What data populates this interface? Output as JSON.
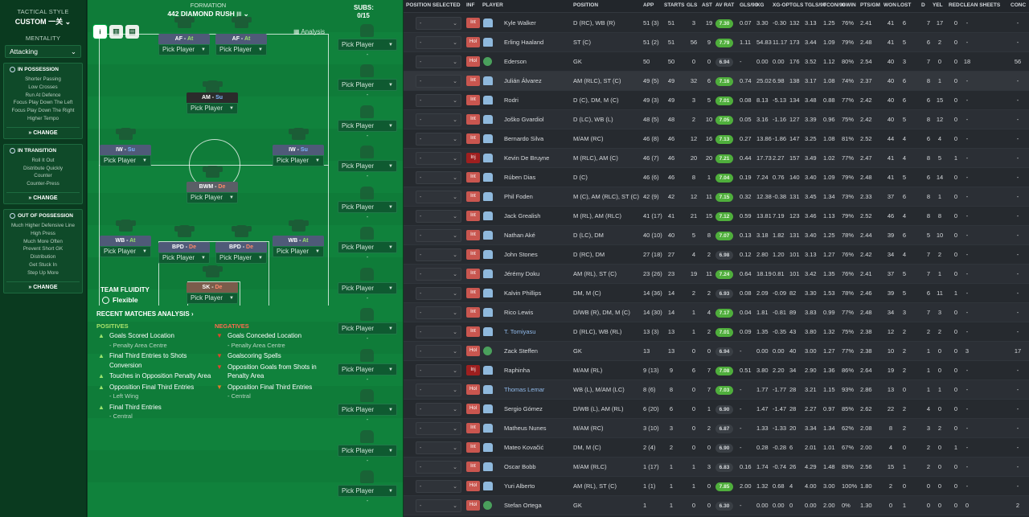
{
  "left_panel": {
    "tactical_style_label": "TACTICAL STYLE",
    "tactical_style_value": "CUSTOM 一关",
    "mentality_label": "MENTALITY",
    "mentality_value": "Attacking",
    "in_possession": {
      "title": "IN POSSESSION",
      "items": [
        "Shorter Passing",
        "Low Crosses",
        "Run At Defence",
        "Focus Play Down The Left",
        "Focus Play Down The Right",
        "Higher Tempo"
      ],
      "change": "CHANGE"
    },
    "in_transition": {
      "title": "IN TRANSITION",
      "items": [
        "Roll It Out",
        "Distribute Quickly",
        "Counter",
        "Counter-Press"
      ],
      "change": "CHANGE"
    },
    "out_of_possession": {
      "title": "OUT OF POSSESSION",
      "items": [
        "Much Higher Defensive Line",
        "High Press",
        "Much More Often",
        "Prevent Short GK",
        "Distribution",
        "Get Stuck In",
        "Step Up More"
      ],
      "change": "CHANGE"
    }
  },
  "pitch": {
    "formation_label": "FORMATION",
    "formation_name": "442 DIAMOND RUSH",
    "subs_label": "SUBS:",
    "subs_count": "0/15",
    "analysis_label": "Analysis",
    "pick_label": "Pick Player",
    "positions": [
      {
        "role": "AF",
        "duty": "At"
      },
      {
        "role": "AF",
        "duty": "At"
      },
      {
        "role": "AM",
        "duty": "Su"
      },
      {
        "role": "IW",
        "duty": "Su"
      },
      {
        "role": "IW",
        "duty": "Su"
      },
      {
        "role": "BWM",
        "duty": "De"
      },
      {
        "role": "WB",
        "duty": "At"
      },
      {
        "role": "BPD",
        "duty": "De"
      },
      {
        "role": "BPD",
        "duty": "De"
      },
      {
        "role": "WB",
        "duty": "At"
      },
      {
        "role": "SK",
        "duty": "De"
      }
    ],
    "sub_dash": "-",
    "team_fluidity_label": "TEAM FLUIDITY",
    "team_fluidity_value": "Flexible",
    "recent_matches_label": "RECENT MATCHES ANALYSIS",
    "positives_label": "POSITIVES",
    "negatives_label": "NEGATIVES",
    "positives": [
      {
        "text": "Goals Scored Location",
        "sub": "- Penalty Area Centre"
      },
      {
        "text": "Final Third Entries to Shots Conversion",
        "sub": ""
      },
      {
        "text": "Touches in Opposition Penalty Area",
        "sub": ""
      },
      {
        "text": "Opposition Final Third Entries",
        "sub": "- Left Wing"
      },
      {
        "text": "Final Third Entries",
        "sub": "- Central"
      }
    ],
    "negatives": [
      {
        "text": "Goals Conceded Location",
        "sub": "- Penalty Area Centre"
      },
      {
        "text": "Goalscoring Spells",
        "sub": ""
      },
      {
        "text": "Opposition Goals from Shots in Penalty Area",
        "sub": ""
      },
      {
        "text": "Opposition Final Third Entries",
        "sub": "- Central"
      }
    ]
  },
  "table": {
    "columns": [
      "POSITION SELECTED",
      "INF",
      "PLAYER",
      "POSITION",
      "APP",
      "STARTS",
      "GLS",
      "AST",
      "AV RAT",
      "GLS/90",
      "XG",
      "XG-OP",
      "TGLS",
      "TGLS/90",
      "TCON/90",
      "GWIN",
      "PTS/GM",
      "WON",
      "LOST",
      "D",
      "YEL",
      "RED",
      "CLEAN SHEETS",
      "CONC"
    ],
    "rows": [
      {
        "inf": "Int",
        "player": "Kyle Walker",
        "position": "D (RC), WB (R)",
        "app": "51 (3)",
        "starts": "51",
        "gls": "3",
        "ast": "19",
        "rat": "7.30",
        "gls90": "0.07",
        "xg": "3.30",
        "xgop": "-0.30",
        "tgls": "132",
        "tgls90": "3.13",
        "tcon90": "1.25",
        "gwin": "76%",
        "ptsgm": "2.41",
        "won": "41",
        "lost": "6",
        "d": "7",
        "yel": "17",
        "red": "0",
        "cs": "-",
        "conc": "-"
      },
      {
        "inf": "Hol",
        "player": "Erling Haaland",
        "position": "ST (C)",
        "app": "51 (2)",
        "starts": "51",
        "gls": "56",
        "ast": "9",
        "rat": "7.79",
        "gls90": "1.11",
        "xg": "54.83",
        "xgop": "11.17",
        "tgls": "173",
        "tgls90": "3.44",
        "tcon90": "1.09",
        "gwin": "79%",
        "ptsgm": "2.48",
        "won": "41",
        "lost": "5",
        "d": "6",
        "yel": "2",
        "red": "0",
        "cs": "-",
        "conc": "-"
      },
      {
        "inf": "Hol",
        "player": "Ederson",
        "position": "GK",
        "app": "50",
        "starts": "50",
        "gls": "0",
        "ast": "0",
        "rat": "6.94",
        "gls90": "-",
        "xg": "0.00",
        "xgop": "0.00",
        "tgls": "176",
        "tgls90": "3.52",
        "tcon90": "1.12",
        "gwin": "80%",
        "ptsgm": "2.54",
        "won": "40",
        "lost": "3",
        "d": "7",
        "yel": "0",
        "red": "0",
        "cs": "18",
        "conc": "56"
      },
      {
        "inf": "Int",
        "player": "Julián Álvarez",
        "position": "AM (RLC), ST (C)",
        "app": "49 (5)",
        "starts": "49",
        "gls": "32",
        "ast": "6",
        "rat": "7.16",
        "gls90": "0.74",
        "xg": "25.02",
        "xgop": "6.98",
        "tgls": "138",
        "tgls90": "3.17",
        "tcon90": "1.08",
        "gwin": "74%",
        "ptsgm": "2.37",
        "won": "40",
        "lost": "6",
        "d": "8",
        "yel": "1",
        "red": "0",
        "cs": "-",
        "conc": "-"
      },
      {
        "inf": "Int",
        "player": "Rodri",
        "position": "D (C), DM, M (C)",
        "app": "49 (3)",
        "starts": "49",
        "gls": "3",
        "ast": "5",
        "rat": "7.01",
        "gls90": "0.08",
        "xg": "8.13",
        "xgop": "-5.13",
        "tgls": "134",
        "tgls90": "3.48",
        "tcon90": "0.88",
        "gwin": "77%",
        "ptsgm": "2.42",
        "won": "40",
        "lost": "6",
        "d": "6",
        "yel": "15",
        "red": "0",
        "cs": "-",
        "conc": "-"
      },
      {
        "inf": "Int",
        "player": "Joško Gvardiol",
        "position": "D (LC), WB (L)",
        "app": "48 (5)",
        "starts": "48",
        "gls": "2",
        "ast": "10",
        "rat": "7.05",
        "gls90": "0.05",
        "xg": "3.16",
        "xgop": "-1.16",
        "tgls": "127",
        "tgls90": "3.39",
        "tcon90": "0.96",
        "gwin": "75%",
        "ptsgm": "2.42",
        "won": "40",
        "lost": "5",
        "d": "8",
        "yel": "12",
        "red": "0",
        "cs": "-",
        "conc": "-"
      },
      {
        "inf": "Int",
        "player": "Bernardo Silva",
        "position": "M/AM (RC)",
        "app": "46 (8)",
        "starts": "46",
        "gls": "12",
        "ast": "16",
        "rat": "7.13",
        "gls90": "0.27",
        "xg": "13.86",
        "xgop": "-1.86",
        "tgls": "147",
        "tgls90": "3.25",
        "tcon90": "1.08",
        "gwin": "81%",
        "ptsgm": "2.52",
        "won": "44",
        "lost": "4",
        "d": "6",
        "yel": "4",
        "red": "0",
        "cs": "-",
        "conc": "-"
      },
      {
        "inf": "Inj",
        "player": "Kevin De Bruyne",
        "position": "M (RLC), AM (C)",
        "app": "46 (7)",
        "starts": "46",
        "gls": "20",
        "ast": "20",
        "rat": "7.21",
        "gls90": "0.44",
        "xg": "17.73",
        "xgop": "2.27",
        "tgls": "157",
        "tgls90": "3.49",
        "tcon90": "1.02",
        "gwin": "77%",
        "ptsgm": "2.47",
        "won": "41",
        "lost": "4",
        "d": "8",
        "yel": "5",
        "red": "1",
        "cs": "-",
        "conc": "-"
      },
      {
        "inf": "Int",
        "player": "Rúben Dias",
        "position": "D (C)",
        "app": "46 (6)",
        "starts": "46",
        "gls": "8",
        "ast": "1",
        "rat": "7.04",
        "gls90": "0.19",
        "xg": "7.24",
        "xgop": "0.76",
        "tgls": "140",
        "tgls90": "3.40",
        "tcon90": "1.09",
        "gwin": "79%",
        "ptsgm": "2.48",
        "won": "41",
        "lost": "5",
        "d": "6",
        "yel": "14",
        "red": "0",
        "cs": "-",
        "conc": "-"
      },
      {
        "inf": "Int",
        "player": "Phil Foden",
        "position": "M (C), AM (RLC), ST (C)",
        "app": "42 (9)",
        "starts": "42",
        "gls": "12",
        "ast": "11",
        "rat": "7.15",
        "gls90": "0.32",
        "xg": "12.38",
        "xgop": "-0.38",
        "tgls": "131",
        "tgls90": "3.45",
        "tcon90": "1.34",
        "gwin": "73%",
        "ptsgm": "2.33",
        "won": "37",
        "lost": "6",
        "d": "8",
        "yel": "1",
        "red": "0",
        "cs": "-",
        "conc": "-"
      },
      {
        "inf": "Int",
        "player": "Jack Grealish",
        "position": "M (RL), AM (RLC)",
        "app": "41 (17)",
        "starts": "41",
        "gls": "21",
        "ast": "15",
        "rat": "7.12",
        "gls90": "0.59",
        "xg": "13.81",
        "xgop": "7.19",
        "tgls": "123",
        "tgls90": "3.46",
        "tcon90": "1.13",
        "gwin": "79%",
        "ptsgm": "2.52",
        "won": "46",
        "lost": "4",
        "d": "8",
        "yel": "8",
        "red": "0",
        "cs": "-",
        "conc": "-"
      },
      {
        "inf": "Int",
        "player": "Nathan Aké",
        "position": "D (LC), DM",
        "app": "40 (10)",
        "starts": "40",
        "gls": "5",
        "ast": "8",
        "rat": "7.07",
        "gls90": "0.13",
        "xg": "3.18",
        "xgop": "1.82",
        "tgls": "131",
        "tgls90": "3.40",
        "tcon90": "1.25",
        "gwin": "78%",
        "ptsgm": "2.44",
        "won": "39",
        "lost": "6",
        "d": "5",
        "yel": "10",
        "red": "0",
        "cs": "-",
        "conc": "-"
      },
      {
        "inf": "Int",
        "player": "John Stones",
        "position": "D (RC), DM",
        "app": "27 (18)",
        "starts": "27",
        "gls": "4",
        "ast": "2",
        "rat": "6.98",
        "gls90": "0.12",
        "xg": "2.80",
        "xgop": "1.20",
        "tgls": "101",
        "tgls90": "3.13",
        "tcon90": "1.27",
        "gwin": "76%",
        "ptsgm": "2.42",
        "won": "34",
        "lost": "4",
        "d": "7",
        "yel": "2",
        "red": "0",
        "cs": "-",
        "conc": "-"
      },
      {
        "inf": "Int",
        "player": "Jérémy Doku",
        "position": "AM (RL), ST (C)",
        "app": "23 (26)",
        "starts": "23",
        "gls": "19",
        "ast": "11",
        "rat": "7.24",
        "gls90": "0.64",
        "xg": "18.19",
        "xgop": "0.81",
        "tgls": "101",
        "tgls90": "3.42",
        "tcon90": "1.35",
        "gwin": "76%",
        "ptsgm": "2.41",
        "won": "37",
        "lost": "5",
        "d": "7",
        "yel": "1",
        "red": "0",
        "cs": "-",
        "conc": "-"
      },
      {
        "inf": "Int",
        "player": "Kalvin Phillips",
        "position": "DM, M (C)",
        "app": "14 (36)",
        "starts": "14",
        "gls": "2",
        "ast": "2",
        "rat": "6.93",
        "gls90": "0.08",
        "xg": "2.09",
        "xgop": "-0.09",
        "tgls": "82",
        "tgls90": "3.30",
        "tcon90": "1.53",
        "gwin": "78%",
        "ptsgm": "2.46",
        "won": "39",
        "lost": "5",
        "d": "6",
        "yel": "11",
        "red": "1",
        "cs": "-",
        "conc": "-"
      },
      {
        "inf": "Int",
        "player": "Rico Lewis",
        "position": "D/WB (R), DM, M (C)",
        "app": "14 (30)",
        "starts": "14",
        "gls": "1",
        "ast": "4",
        "rat": "7.17",
        "gls90": "0.04",
        "xg": "1.81",
        "xgop": "-0.81",
        "tgls": "89",
        "tgls90": "3.83",
        "tcon90": "0.99",
        "gwin": "77%",
        "ptsgm": "2.48",
        "won": "34",
        "lost": "3",
        "d": "7",
        "yel": "3",
        "red": "0",
        "cs": "-",
        "conc": "-"
      },
      {
        "inf": "Int",
        "player": "T. Tomiyasu",
        "position": "D (RLC), WB (RL)",
        "app": "13 (3)",
        "starts": "13",
        "gls": "1",
        "ast": "2",
        "rat": "7.01",
        "gls90": "0.09",
        "xg": "1.35",
        "xgop": "-0.35",
        "tgls": "43",
        "tgls90": "3.80",
        "tcon90": "1.32",
        "gwin": "75%",
        "ptsgm": "2.38",
        "won": "12",
        "lost": "2",
        "d": "2",
        "yel": "2",
        "red": "0",
        "cs": "-",
        "conc": "-"
      },
      {
        "inf": "Hol",
        "player": "Zack Steffen",
        "position": "GK",
        "app": "13",
        "starts": "13",
        "gls": "0",
        "ast": "0",
        "rat": "6.94",
        "gls90": "-",
        "xg": "0.00",
        "xgop": "0.00",
        "tgls": "40",
        "tgls90": "3.00",
        "tcon90": "1.27",
        "gwin": "77%",
        "ptsgm": "2.38",
        "won": "10",
        "lost": "2",
        "d": "1",
        "yel": "0",
        "red": "0",
        "cs": "3",
        "conc": "17"
      },
      {
        "inf": "Inj",
        "player": "Raphinha",
        "position": "M/AM (RL)",
        "app": "9 (13)",
        "starts": "9",
        "gls": "6",
        "ast": "7",
        "rat": "7.08",
        "gls90": "0.51",
        "xg": "3.80",
        "xgop": "2.20",
        "tgls": "34",
        "tgls90": "2.90",
        "tcon90": "1.36",
        "gwin": "86%",
        "ptsgm": "2.64",
        "won": "19",
        "lost": "2",
        "d": "1",
        "yel": "0",
        "red": "0",
        "cs": "-",
        "conc": "-"
      },
      {
        "inf": "Hol",
        "player": "Thomas Lemar",
        "position": "WB (L), M/AM (LC)",
        "app": "8 (6)",
        "starts": "8",
        "gls": "0",
        "ast": "7",
        "rat": "7.03",
        "gls90": "-",
        "xg": "1.77",
        "xgop": "-1.77",
        "tgls": "28",
        "tgls90": "3.21",
        "tcon90": "1.15",
        "gwin": "93%",
        "ptsgm": "2.86",
        "won": "13",
        "lost": "0",
        "d": "1",
        "yel": "1",
        "red": "0",
        "cs": "-",
        "conc": "-"
      },
      {
        "inf": "Hol",
        "player": "Sergio Gómez",
        "position": "D/WB (L), AM (RL)",
        "app": "6 (20)",
        "starts": "6",
        "gls": "0",
        "ast": "1",
        "rat": "6.90",
        "gls90": "-",
        "xg": "1.47",
        "xgop": "-1.47",
        "tgls": "28",
        "tgls90": "2.27",
        "tcon90": "0.97",
        "gwin": "85%",
        "ptsgm": "2.62",
        "won": "22",
        "lost": "2",
        "d": "4",
        "yel": "0",
        "red": "0",
        "cs": "-",
        "conc": "-"
      },
      {
        "inf": "Int",
        "player": "Matheus Nunes",
        "position": "M/AM (RC)",
        "app": "3 (10)",
        "starts": "3",
        "gls": "0",
        "ast": "2",
        "rat": "6.87",
        "gls90": "-",
        "xg": "1.33",
        "xgop": "-1.33",
        "tgls": "20",
        "tgls90": "3.34",
        "tcon90": "1.34",
        "gwin": "62%",
        "ptsgm": "2.08",
        "won": "8",
        "lost": "2",
        "d": "3",
        "yel": "2",
        "red": "0",
        "cs": "-",
        "conc": "-"
      },
      {
        "inf": "Int",
        "player": "Mateo Kovačić",
        "position": "DM, M (C)",
        "app": "2 (4)",
        "starts": "2",
        "gls": "0",
        "ast": "0",
        "rat": "6.90",
        "gls90": "-",
        "xg": "0.28",
        "xgop": "-0.28",
        "tgls": "6",
        "tgls90": "2.01",
        "tcon90": "1.01",
        "gwin": "67%",
        "ptsgm": "2.00",
        "won": "4",
        "lost": "0",
        "d": "2",
        "yel": "0",
        "red": "1",
        "cs": "-",
        "conc": "-"
      },
      {
        "inf": "Int",
        "player": "Oscar Bobb",
        "position": "M/AM (RLC)",
        "app": "1 (17)",
        "starts": "1",
        "gls": "1",
        "ast": "3",
        "rat": "6.83",
        "gls90": "0.16",
        "xg": "1.74",
        "xgop": "-0.74",
        "tgls": "26",
        "tgls90": "4.29",
        "tcon90": "1.48",
        "gwin": "83%",
        "ptsgm": "2.56",
        "won": "15",
        "lost": "1",
        "d": "2",
        "yel": "0",
        "red": "0",
        "cs": "-",
        "conc": "-"
      },
      {
        "inf": "Hol",
        "player": "Yuri Alberto",
        "position": "AM (RL), ST (C)",
        "app": "1 (1)",
        "starts": "1",
        "gls": "1",
        "ast": "0",
        "rat": "7.85",
        "gls90": "2.00",
        "xg": "1.32",
        "xgop": "0.68",
        "tgls": "4",
        "tgls90": "4.00",
        "tcon90": "3.00",
        "gwin": "100%",
        "ptsgm": "1.80",
        "won": "2",
        "lost": "0",
        "d": "0",
        "yel": "0",
        "red": "0",
        "cs": "-",
        "conc": "-"
      },
      {
        "inf": "Hol",
        "player": "Stefan Ortega",
        "position": "GK",
        "app": "1",
        "starts": "1",
        "gls": "0",
        "ast": "0",
        "rat": "6.30",
        "gls90": "-",
        "xg": "0.00",
        "xgop": "0.00",
        "tgls": "0",
        "tgls90": "0.00",
        "tcon90": "2.00",
        "gwin": "0%",
        "ptsgm": "1.30",
        "won": "0",
        "lost": "1",
        "d": "0",
        "yel": "0",
        "red": "0",
        "cs": "0",
        "conc": "2"
      }
    ]
  }
}
